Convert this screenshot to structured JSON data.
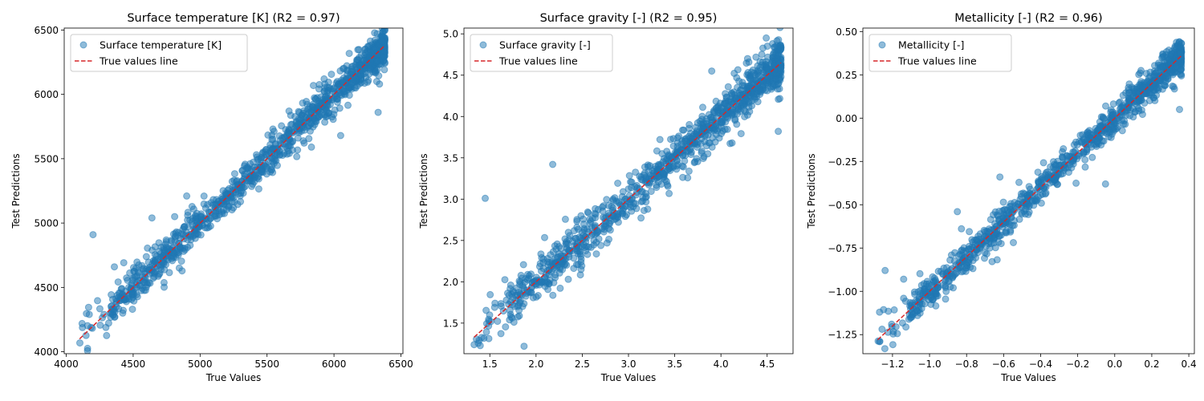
{
  "colors": {
    "points": "#1f77b4",
    "true_line": "#d62728",
    "axes": "#000000",
    "legend_border": "#cccccc"
  },
  "chart_data": [
    {
      "type": "scatter",
      "title": "Surface temperature [K] (R2 = 0.97)",
      "xlabel": "True Values",
      "ylabel": "Test Predictions",
      "xlim": [
        3985,
        6515
      ],
      "ylim": [
        3985,
        6515
      ],
      "xticks": [
        "4000",
        "4500",
        "5000",
        "5500",
        "6000",
        "6500"
      ],
      "yticks": [
        "4000",
        "4500",
        "5000",
        "5500",
        "6000",
        "6500"
      ],
      "legend": {
        "position": "top-left",
        "entries": [
          "Surface temperature [K]",
          "True values line"
        ]
      },
      "grid": false,
      "series": [
        {
          "name": "Surface temperature [K]",
          "kind": "scatter",
          "alpha": 0.5,
          "n_points": 1100,
          "x_range": [
            4100,
            6380
          ],
          "noise_sd": 70,
          "outliers": [
            [
              4200,
              4910
            ],
            [
              4640,
              5040
            ],
            [
              6330,
              5860
            ],
            [
              6050,
              5680
            ],
            [
              6360,
              6410
            ],
            [
              4360,
              4660
            ],
            [
              4810,
              5050
            ],
            [
              4900,
              5210
            ],
            [
              6340,
              6080
            ]
          ]
        },
        {
          "name": "True values line",
          "kind": "line",
          "style": "dashed",
          "points": [
            [
              4100,
              4100
            ],
            [
              6380,
              6380
            ]
          ]
        }
      ]
    },
    {
      "type": "scatter",
      "title": "Surface gravity [-] (R2 = 0.95)",
      "xlabel": "True Values",
      "ylabel": "Test Predictions",
      "xlim": [
        1.22,
        4.78
      ],
      "ylim": [
        1.13,
        5.07
      ],
      "xticks": [
        "1.5",
        "2.0",
        "2.5",
        "3.0",
        "3.5",
        "4.0",
        "4.5"
      ],
      "yticks": [
        "1.5",
        "2.0",
        "2.5",
        "3.0",
        "3.5",
        "4.0",
        "4.5",
        "5.0"
      ],
      "legend": {
        "position": "top-left",
        "entries": [
          "Surface gravity [-]",
          "True values line"
        ]
      },
      "grid": false,
      "series": [
        {
          "name": "Surface gravity [-]",
          "kind": "scatter",
          "alpha": 0.5,
          "n_points": 1000,
          "x_range": [
            1.33,
            4.65
          ],
          "noise_sd": 0.13,
          "outliers": [
            [
              1.45,
              3.01
            ],
            [
              2.18,
              3.42
            ],
            [
              1.87,
              1.22
            ],
            [
              4.49,
              4.95
            ],
            [
              1.33,
              1.24
            ],
            [
              4.12,
              3.68
            ],
            [
              4.62,
              3.82
            ],
            [
              3.9,
              4.55
            ]
          ]
        },
        {
          "name": "True values line",
          "kind": "line",
          "style": "dashed",
          "points": [
            [
              1.33,
              1.33
            ],
            [
              4.65,
              4.65
            ]
          ]
        }
      ]
    },
    {
      "type": "scatter",
      "title": "Metallicity [-] (R2 = 0.96)",
      "xlabel": "True Values",
      "ylabel": "Test Predictions",
      "xlim": [
        -1.36,
        0.43
      ],
      "ylim": [
        -1.36,
        0.52
      ],
      "xticks": [
        "−1.2",
        "−1.0",
        "−0.8",
        "−0.6",
        "−0.4",
        "−0.2",
        "0.0",
        "0.2",
        "0.4"
      ],
      "yticks": [
        "−1.25",
        "−1.00",
        "−0.75",
        "−0.50",
        "−0.25",
        "0.00",
        "0.25",
        "0.50"
      ],
      "legend": {
        "position": "top-left",
        "entries": [
          "Metallicity [-]",
          "True values line"
        ]
      },
      "grid": false,
      "series": [
        {
          "name": "Metallicity [-]",
          "kind": "scatter",
          "alpha": 0.5,
          "n_points": 1000,
          "x_range": [
            -1.28,
            0.36
          ],
          "noise_sd": 0.045,
          "outliers": [
            [
              -1.27,
              -1.12
            ],
            [
              -1.24,
              -0.88
            ],
            [
              -0.05,
              -0.38
            ],
            [
              0.35,
              0.05
            ],
            [
              0.35,
              0.44
            ],
            [
              -0.85,
              -0.54
            ],
            [
              -0.62,
              -0.34
            ],
            [
              -1.14,
              -1.04
            ],
            [
              -1.14,
              -0.93
            ]
          ]
        },
        {
          "name": "True values line",
          "kind": "line",
          "style": "dashed",
          "points": [
            [
              -1.28,
              -1.28
            ],
            [
              0.36,
              0.36
            ]
          ]
        }
      ]
    }
  ]
}
